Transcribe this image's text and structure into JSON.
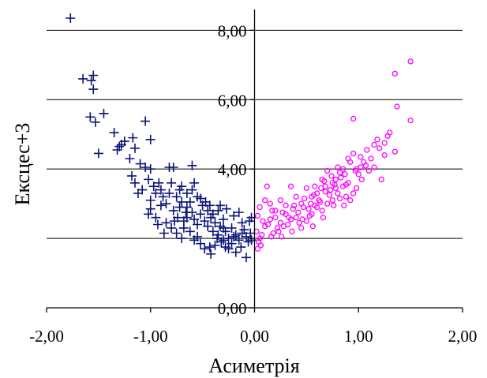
{
  "chart_data": {
    "type": "scatter",
    "xlabel": "Асиметрія",
    "ylabel": "Ексцес+3",
    "xlim": [
      -2,
      2
    ],
    "ylim": [
      0,
      8.6
    ],
    "x_ticks": [
      -2,
      -1,
      0,
      1,
      2
    ],
    "x_tick_labels": [
      "-2,00",
      "-1,00",
      "0,00",
      "1,00",
      "2,00"
    ],
    "y_ticks": [
      0,
      2,
      4,
      6,
      8
    ],
    "y_tick_labels": [
      "0,00",
      "",
      "4,00",
      "6,00",
      "8,00"
    ],
    "grid": "horizontal",
    "legend": "none",
    "colors": {
      "negative": "#0a1478",
      "positive": "#ff00ff"
    },
    "series": [
      {
        "marker": "plus",
        "color": "#0a1478",
        "points": [
          [
            -1.77,
            8.35
          ],
          [
            -1.65,
            6.6
          ],
          [
            -1.55,
            6.7
          ],
          [
            -1.57,
            6.55
          ],
          [
            -1.55,
            6.3
          ],
          [
            -1.58,
            5.5
          ],
          [
            -1.53,
            5.35
          ],
          [
            -1.45,
            5.6
          ],
          [
            -1.5,
            4.45
          ],
          [
            -1.35,
            5.05
          ],
          [
            -1.3,
            4.65
          ],
          [
            -1.28,
            4.7
          ],
          [
            -1.32,
            4.55
          ],
          [
            -1.25,
            4.8
          ],
          [
            -1.17,
            4.9
          ],
          [
            -1.15,
            4.6
          ],
          [
            -1.2,
            4.3
          ],
          [
            -1.1,
            4.15
          ],
          [
            -1.05,
            4.05
          ],
          [
            -1.05,
            5.38
          ],
          [
            -1.0,
            4.85
          ],
          [
            -1.0,
            4.0
          ],
          [
            -1.02,
            3.7
          ],
          [
            -1.08,
            3.4
          ],
          [
            -1.12,
            3.3
          ],
          [
            -1.18,
            3.8
          ],
          [
            -1.15,
            3.6
          ],
          [
            -0.97,
            3.5
          ],
          [
            -0.95,
            3.3
          ],
          [
            -0.9,
            3.4
          ],
          [
            -0.92,
            3.6
          ],
          [
            -1.0,
            3.1
          ],
          [
            -1.0,
            2.85
          ],
          [
            -1.02,
            2.7
          ],
          [
            -0.95,
            2.6
          ],
          [
            -0.88,
            3.2
          ],
          [
            -0.85,
            3.0
          ],
          [
            -0.82,
            4.05
          ],
          [
            -0.78,
            4.05
          ],
          [
            -0.8,
            3.6
          ],
          [
            -0.82,
            3.3
          ],
          [
            -0.75,
            3.2
          ],
          [
            -0.7,
            3.05
          ],
          [
            -0.72,
            2.9
          ],
          [
            -0.78,
            2.8
          ],
          [
            -0.74,
            2.6
          ],
          [
            -0.68,
            2.5
          ],
          [
            -0.65,
            2.9
          ],
          [
            -0.62,
            3.05
          ],
          [
            -0.6,
            2.75
          ],
          [
            -0.58,
            2.55
          ],
          [
            -0.55,
            2.4
          ],
          [
            -0.52,
            2.7
          ],
          [
            -0.5,
            2.95
          ],
          [
            -0.48,
            2.5
          ],
          [
            -0.45,
            2.35
          ],
          [
            -0.42,
            2.6
          ],
          [
            -0.4,
            2.2
          ],
          [
            -0.38,
            2.45
          ],
          [
            -0.35,
            2.1
          ],
          [
            -0.33,
            2.35
          ],
          [
            -0.3,
            2.55
          ],
          [
            -0.28,
            2.2
          ],
          [
            -0.25,
            2.0
          ],
          [
            -0.22,
            2.3
          ],
          [
            -0.2,
            2.65
          ],
          [
            -0.18,
            2.1
          ],
          [
            -0.15,
            1.95
          ],
          [
            -0.12,
            2.45
          ],
          [
            -0.1,
            2.25
          ],
          [
            -0.08,
            2.05
          ],
          [
            -0.06,
            1.9
          ],
          [
            -0.04,
            2.15
          ],
          [
            -0.03,
            1.95
          ],
          [
            -0.7,
            3.5
          ],
          [
            -0.65,
            3.3
          ],
          [
            -0.6,
            3.4
          ],
          [
            -0.72,
            3.4
          ],
          [
            -0.55,
            3.2
          ],
          [
            -0.45,
            2.8
          ],
          [
            -0.43,
            2.95
          ],
          [
            -0.4,
            2.7
          ],
          [
            -0.35,
            2.8
          ],
          [
            -0.3,
            2.3
          ],
          [
            -0.85,
            2.45
          ],
          [
            -0.8,
            2.3
          ],
          [
            -0.75,
            2.15
          ],
          [
            -0.7,
            2.0
          ],
          [
            -0.62,
            2.2
          ],
          [
            -0.55,
            2.05
          ],
          [
            -0.52,
            1.85
          ],
          [
            -0.48,
            1.7
          ],
          [
            -0.42,
            1.55
          ],
          [
            -0.38,
            1.8
          ],
          [
            -0.32,
            1.9
          ],
          [
            -0.28,
            1.75
          ],
          [
            -0.22,
            1.85
          ],
          [
            -0.18,
            1.6
          ],
          [
            -0.13,
            1.75
          ],
          [
            -0.08,
            1.45
          ],
          [
            -0.43,
            1.75
          ],
          [
            -0.3,
            1.95
          ],
          [
            -0.25,
            1.7
          ],
          [
            -0.6,
            4.1
          ],
          [
            -0.65,
            2.6
          ],
          [
            -0.68,
            2.3
          ],
          [
            -0.9,
            2.95
          ],
          [
            -0.93,
            2.4
          ],
          [
            -0.87,
            2.15
          ],
          [
            -0.77,
            2.5
          ],
          [
            -0.58,
            3.6
          ],
          [
            -0.52,
            3.15
          ],
          [
            -0.47,
            3.05
          ],
          [
            -0.33,
            2.95
          ],
          [
            -0.27,
            2.85
          ],
          [
            -0.15,
            2.75
          ],
          [
            -0.05,
            2.5
          ],
          [
            -0.03,
            2.6
          ],
          [
            -0.12,
            2.15
          ],
          [
            -0.2,
            2.05
          ],
          [
            -0.36,
            2.0
          ],
          [
            -0.58,
            1.95
          ],
          [
            -0.66,
            2.75
          ]
        ]
      },
      {
        "marker": "circle",
        "color": "#ff00ff",
        "points": [
          [
            1.5,
            7.1
          ],
          [
            1.35,
            6.75
          ],
          [
            1.5,
            5.4
          ],
          [
            1.37,
            5.8
          ],
          [
            0.95,
            5.45
          ],
          [
            1.3,
            5.05
          ],
          [
            1.28,
            4.95
          ],
          [
            1.25,
            4.75
          ],
          [
            1.35,
            4.5
          ],
          [
            1.25,
            4.4
          ],
          [
            1.2,
            4.6
          ],
          [
            1.18,
            4.85
          ],
          [
            1.15,
            4.7
          ],
          [
            1.12,
            4.3
          ],
          [
            1.08,
            4.55
          ],
          [
            1.02,
            4.35
          ],
          [
            1.05,
            4.2
          ],
          [
            1.02,
            4.05
          ],
          [
            0.98,
            4.0
          ],
          [
            0.95,
            4.45
          ],
          [
            0.92,
            4.2
          ],
          [
            0.9,
            4.3
          ],
          [
            0.85,
            4.0
          ],
          [
            0.82,
            3.9
          ],
          [
            0.8,
            4.05
          ],
          [
            0.78,
            3.7
          ],
          [
            0.75,
            3.6
          ],
          [
            0.7,
            3.95
          ],
          [
            0.68,
            3.5
          ],
          [
            0.65,
            3.7
          ],
          [
            0.6,
            3.3
          ],
          [
            0.58,
            3.5
          ],
          [
            0.55,
            3.2
          ],
          [
            0.5,
            3.45
          ],
          [
            0.45,
            3.0
          ],
          [
            0.4,
            3.2
          ],
          [
            0.35,
            3.5
          ],
          [
            0.3,
            2.95
          ],
          [
            0.25,
            3.1
          ],
          [
            0.2,
            2.8
          ],
          [
            0.15,
            3.0
          ],
          [
            0.12,
            3.5
          ],
          [
            0.1,
            3.1
          ],
          [
            0.05,
            2.9
          ],
          [
            0.03,
            2.65
          ],
          [
            0.02,
            2.2
          ],
          [
            0.04,
            1.9
          ],
          [
            0.05,
            2.0
          ],
          [
            0.03,
            1.7
          ],
          [
            0.08,
            2.5
          ],
          [
            0.1,
            2.35
          ],
          [
            0.15,
            2.55
          ],
          [
            0.2,
            2.6
          ],
          [
            0.25,
            2.45
          ],
          [
            0.3,
            2.7
          ],
          [
            0.35,
            2.55
          ],
          [
            0.4,
            2.6
          ],
          [
            0.45,
            2.3
          ],
          [
            0.5,
            2.5
          ],
          [
            0.55,
            2.7
          ],
          [
            0.6,
            2.9
          ],
          [
            0.65,
            2.8
          ],
          [
            0.7,
            3.0
          ],
          [
            0.75,
            3.1
          ],
          [
            0.8,
            3.3
          ],
          [
            0.85,
            3.5
          ],
          [
            0.9,
            3.6
          ],
          [
            0.95,
            3.3
          ],
          [
            0.98,
            3.45
          ],
          [
            0.88,
            3.2
          ],
          [
            0.72,
            3.25
          ],
          [
            0.62,
            3.1
          ],
          [
            0.52,
            2.85
          ],
          [
            0.42,
            2.75
          ],
          [
            0.32,
            2.4
          ],
          [
            0.22,
            2.3
          ],
          [
            0.18,
            2.15
          ],
          [
            0.28,
            2.35
          ],
          [
            0.38,
            2.95
          ],
          [
            0.48,
            3.15
          ],
          [
            0.58,
            2.95
          ],
          [
            0.68,
            3.35
          ],
          [
            0.78,
            3.45
          ],
          [
            0.83,
            3.75
          ],
          [
            0.73,
            3.4
          ],
          [
            0.63,
            3.05
          ],
          [
            0.53,
            2.65
          ],
          [
            0.43,
            2.45
          ],
          [
            0.33,
            2.6
          ],
          [
            0.23,
            2.2
          ],
          [
            0.13,
            2.4
          ],
          [
            0.07,
            2.1
          ],
          [
            0.17,
            2.8
          ],
          [
            0.27,
            2.75
          ],
          [
            0.37,
            2.85
          ],
          [
            0.47,
            2.9
          ],
          [
            0.57,
            3.25
          ],
          [
            0.67,
            3.65
          ],
          [
            0.77,
            3.55
          ],
          [
            0.87,
            3.85
          ],
          [
            0.97,
            3.95
          ],
          [
            1.0,
            3.85
          ],
          [
            1.07,
            4.1
          ],
          [
            1.1,
            3.95
          ],
          [
            1.15,
            4.05
          ],
          [
            1.22,
            3.7
          ],
          [
            0.88,
            3.55
          ],
          [
            0.82,
            3.15
          ],
          [
            0.76,
            2.95
          ],
          [
            0.66,
            2.6
          ],
          [
            0.56,
            2.35
          ],
          [
            0.46,
            2.55
          ],
          [
            0.36,
            2.2
          ],
          [
            0.26,
            2.05
          ],
          [
            0.16,
            2.05
          ],
          [
            0.06,
            1.8
          ],
          [
            0.92,
            3.1
          ],
          [
            0.86,
            2.95
          ],
          [
            1.03,
            3.7
          ],
          [
            0.74,
            3.8
          ],
          [
            0.64,
            3.45
          ],
          [
            0.54,
            3.0
          ]
        ]
      }
    ]
  }
}
